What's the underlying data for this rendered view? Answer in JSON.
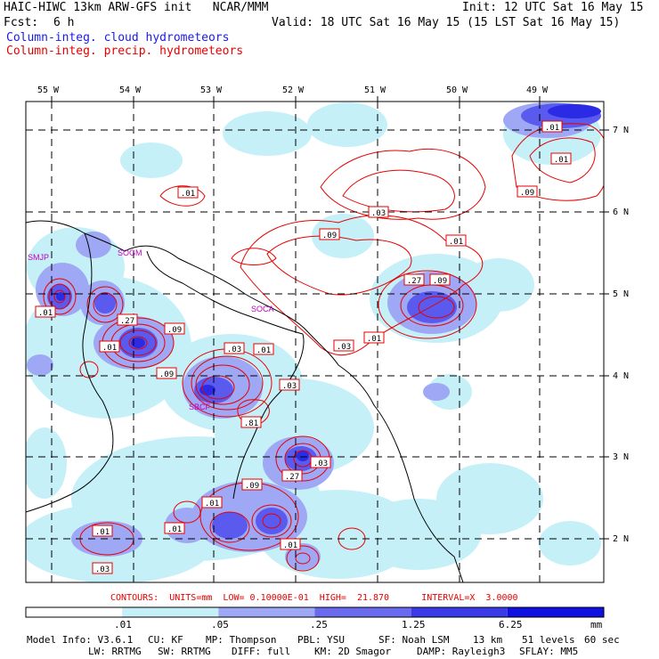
{
  "header": {
    "model_title": "HAIC-HIWC 13km ARW-GFS init   NCAR/MMM",
    "init": "Init: 12 UTC Sat 16 May 15",
    "fcst_label": "Fcst:",
    "fcst_value": "6 h",
    "valid": "Valid: 18 UTC Sat 16 May 15 (15 LST Sat 16 May 15)",
    "field_cloud": "Column-integ. cloud hydrometeors",
    "field_precip": "Column-integ. precip. hydrometeors"
  },
  "map": {
    "lon_labels": [
      "55 W",
      "54 W",
      "53 W",
      "52 W",
      "51 W",
      "50 W",
      "49 W"
    ],
    "lat_labels": [
      "7 N",
      "6 N",
      "5 N",
      "4 N",
      "3 N",
      "2 N"
    ],
    "stations": [
      "SMJP",
      "SOGM",
      "SOCA",
      "SBCF"
    ],
    "contour_labels": [
      ".01",
      ".01",
      ".01",
      ".09",
      ".01",
      ".27",
      ".09",
      ".27",
      ".09",
      ".01",
      ".03",
      ".01",
      ".09",
      ".03",
      ".03",
      ".01",
      ".81",
      ".03",
      ".27",
      ".09",
      ".01",
      ".01",
      ".01",
      ".03",
      ".01",
      ".09",
      ".03",
      ".01"
    ],
    "colors": {
      "light": "#c6f0f8",
      "mid": "#9ea8f4",
      "strong": "#5a5aee",
      "dark": "#2b2be6",
      "contour": "#e60000"
    }
  },
  "contour_info": "CONTOURS:  UNITS=mm  LOW= 0.10000E-01  HIGH=  21.870      INTERVAL=X  3.0000",
  "colorbar": {
    "ticks": [
      ".01",
      ".05",
      ".25",
      "1.25",
      "6.25"
    ],
    "units": "mm",
    "colors": [
      "#ffffff",
      "#c6f0f8",
      "#9ea8f4",
      "#6a6aee",
      "#3a3ae6",
      "#1010e0"
    ]
  },
  "footer": {
    "line1": [
      "Model Info: V3.6.1",
      "CU: KF",
      "MP: Thompson",
      "PBL: YSU",
      "SF: Noah LSM",
      "13 km",
      "51 levels",
      "60 sec"
    ],
    "line2": [
      "LW: RRTMG",
      "SW: RRTMG",
      "DIFF: full",
      "KM: 2D Smagor",
      "DAMP: Rayleigh3",
      "SFLAY: MM5"
    ]
  }
}
